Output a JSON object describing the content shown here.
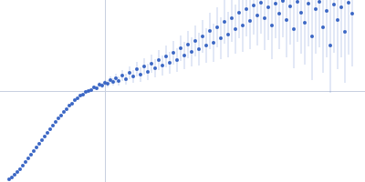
{
  "chart_data": {
    "type": "scatter",
    "color": "#3a66c4",
    "marker": "circle",
    "grid": true,
    "tick_labels": false,
    "xlim": [
      0,
      400
    ],
    "ylim": [
      0,
      200
    ],
    "xticks": [
      115
    ],
    "yticks": [
      100
    ],
    "x": [
      10,
      13,
      16,
      19,
      22,
      25,
      28,
      31,
      34,
      37,
      40,
      43,
      46,
      49,
      52,
      55,
      58,
      61,
      64,
      67,
      70,
      73,
      76,
      79,
      82,
      85,
      88,
      91,
      94,
      97,
      100,
      103,
      106,
      109,
      112,
      115,
      118,
      121,
      124,
      127,
      130,
      134,
      138,
      142,
      146,
      150,
      154,
      158,
      162,
      166,
      170,
      174,
      178,
      182,
      186,
      190,
      194,
      198,
      202,
      206,
      210,
      214,
      218,
      222,
      226,
      230,
      234,
      238,
      242,
      246,
      250,
      254,
      258,
      262,
      266,
      270,
      274,
      278,
      282,
      286,
      290,
      294,
      298,
      302,
      306,
      310,
      314,
      318,
      322,
      326,
      330,
      334,
      338,
      342,
      346,
      350,
      354,
      358,
      362,
      366,
      370,
      374,
      378,
      382,
      386
    ],
    "values": [
      3,
      5,
      8,
      11,
      14,
      18,
      22,
      26,
      30,
      34,
      38,
      42,
      46,
      50,
      54,
      58,
      62,
      66,
      70,
      73,
      77,
      80,
      84,
      86,
      90,
      92,
      95,
      96,
      99,
      100,
      101,
      104,
      103,
      107,
      106,
      109,
      108,
      112,
      110,
      114,
      111,
      117,
      113,
      120,
      116,
      124,
      118,
      127,
      121,
      130,
      125,
      134,
      128,
      138,
      131,
      142,
      134,
      147,
      139,
      151,
      143,
      155,
      146,
      160,
      150,
      166,
      153,
      170,
      158,
      176,
      162,
      180,
      168,
      186,
      172,
      190,
      177,
      194,
      183,
      197,
      180,
      192,
      172,
      196,
      185,
      199,
      178,
      193,
      168,
      198,
      186,
      175,
      196,
      160,
      190,
      198,
      170,
      188,
      150,
      195,
      178,
      192,
      165,
      197,
      185
    ],
    "error": [
      0.5,
      0.5,
      0.5,
      0.5,
      0.5,
      0.5,
      0.5,
      0.5,
      0.5,
      0.5,
      0.5,
      0.5,
      0.5,
      0.5,
      0.5,
      0.5,
      0.5,
      1,
      1,
      1,
      1,
      1,
      1,
      1,
      1,
      1,
      1,
      1,
      1,
      1,
      1,
      2,
      2,
      3,
      3,
      3,
      4,
      4,
      4,
      5,
      5,
      6,
      6,
      7,
      7,
      8,
      8,
      9,
      9,
      10,
      10,
      11,
      11,
      12,
      12,
      13,
      13,
      14,
      15,
      15,
      16,
      17,
      18,
      18,
      19,
      20,
      21,
      22,
      23,
      24,
      25,
      26,
      27,
      28,
      29,
      30,
      31,
      32,
      33,
      34,
      35,
      36,
      37,
      38,
      39,
      40,
      41,
      42,
      43,
      44,
      45,
      46,
      47,
      48,
      49,
      50,
      50,
      51,
      52,
      53,
      54,
      55,
      56,
      57,
      58
    ]
  }
}
